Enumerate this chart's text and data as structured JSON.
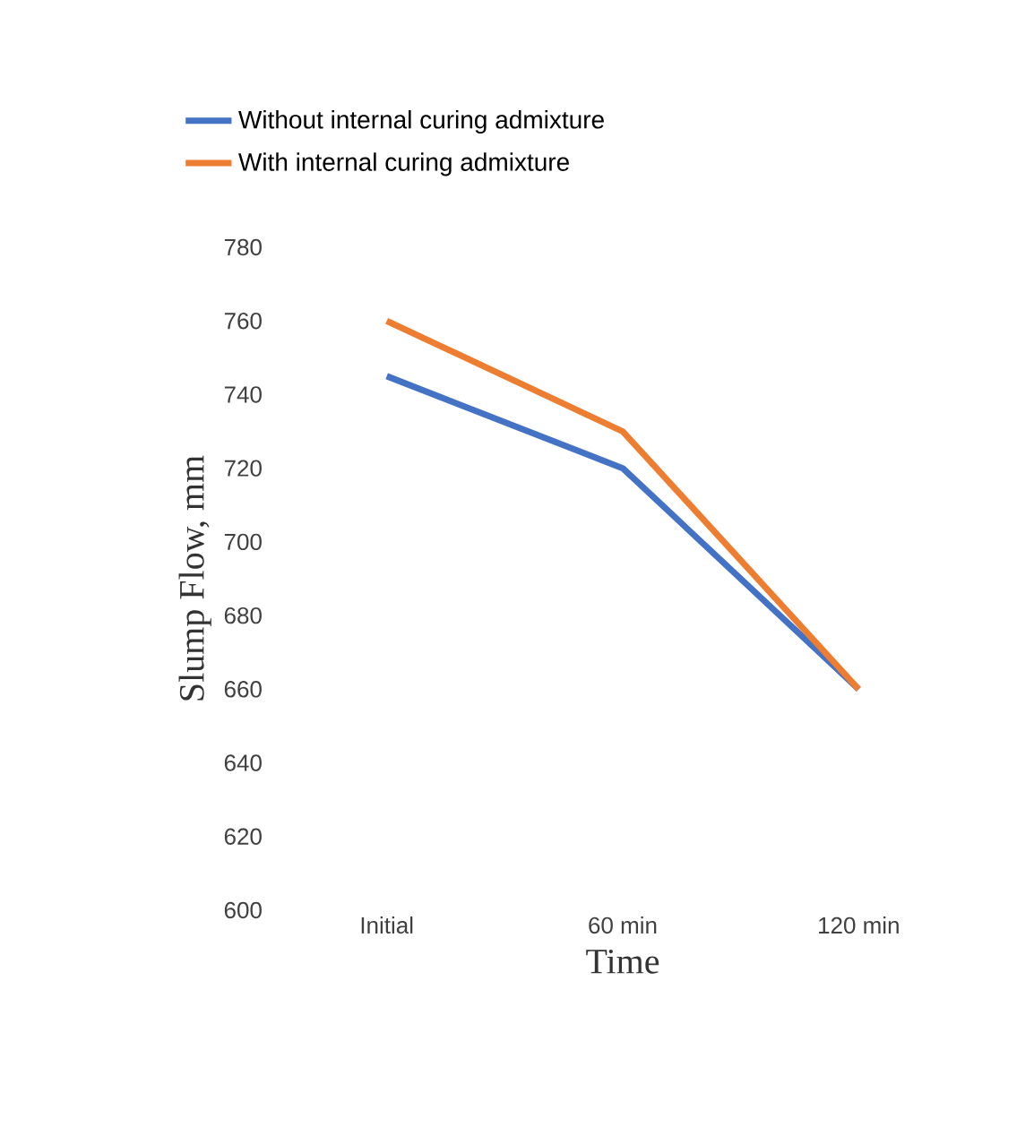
{
  "chart_data": {
    "type": "line",
    "xlabel": "Time",
    "ylabel": "Slump Flow, mm",
    "categories": [
      "Initial",
      "60 min",
      "120 min"
    ],
    "series": [
      {
        "name": "Without internal curing admixture",
        "color": "#4472c4",
        "values": [
          745,
          720,
          660
        ]
      },
      {
        "name": "With internal curing admixture",
        "color": "#ed7d31",
        "values": [
          760,
          730,
          660
        ]
      }
    ],
    "ylim": [
      600,
      780
    ],
    "yticks": [
      600,
      620,
      640,
      660,
      680,
      700,
      720,
      740,
      760,
      780
    ],
    "legend": "top",
    "marker": "none",
    "line_style": "solid"
  }
}
